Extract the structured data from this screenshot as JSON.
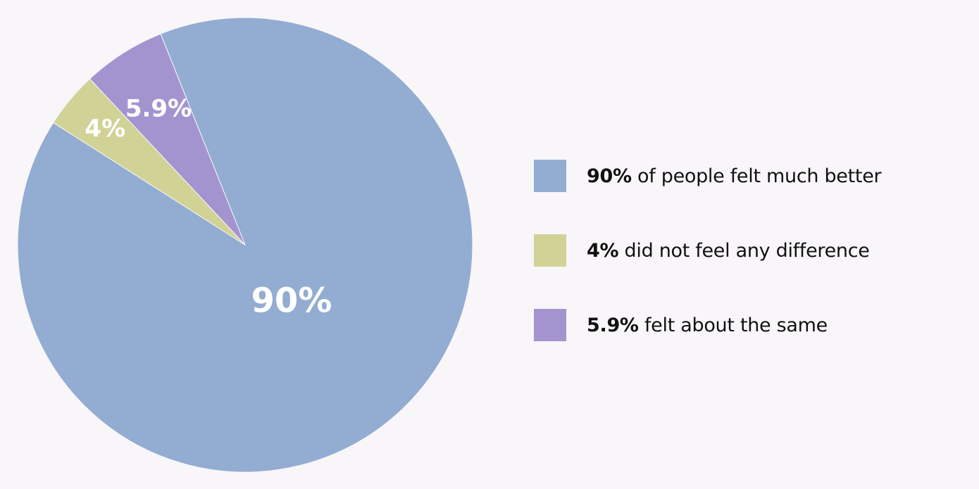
{
  "chart_data": {
    "type": "pie",
    "title": "",
    "slices": [
      {
        "label": "90%",
        "value": 90,
        "color": "#93acd1",
        "legend_value": "90%",
        "legend_text": "of people felt much better"
      },
      {
        "label": "4%",
        "value": 4,
        "color": "#d1d296",
        "legend_value": "4%",
        "legend_text": "did not feel any difference"
      },
      {
        "label": "5.9%",
        "value": 5.9,
        "color": "#a394d0",
        "legend_value": "5.9%",
        "legend_text": "felt about the same"
      }
    ],
    "legend_placement": "right"
  }
}
